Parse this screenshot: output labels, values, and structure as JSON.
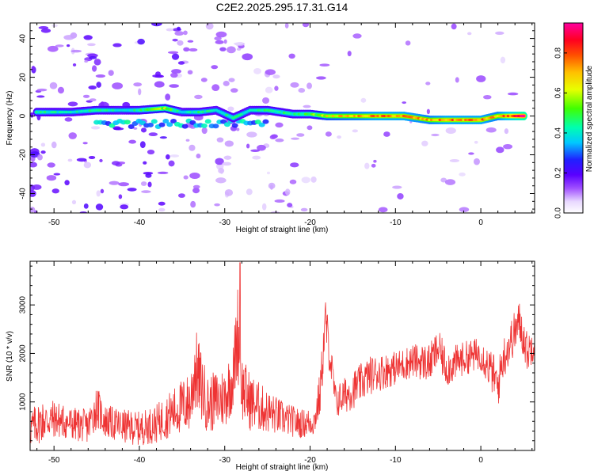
{
  "figure": {
    "title": "C2E2.2025.295.17.31.G14"
  },
  "chart_data": [
    {
      "type": "heatmap",
      "title": "C2E2.2025.295.17.31.G14",
      "xlabel": "Height of straight line (km)",
      "ylabel": "Frequency (Hz)",
      "xlim": [
        -52.8,
        6.3
      ],
      "ylim": [
        -50,
        48
      ],
      "x_ticks": [
        -50,
        -40,
        -30,
        -20,
        -10,
        0
      ],
      "y_ticks": [
        -40,
        -20,
        0,
        20,
        40
      ],
      "colorscale": "rainbow (white-purple-blue-cyan-green-yellow-orange-red-magenta)",
      "colorbar": {
        "label": "Normalized spectral amplitude",
        "range": [
          0,
          0.95
        ],
        "ticks": [
          0.0,
          0.2,
          0.4,
          0.6,
          0.8
        ]
      },
      "ridge": {
        "description": "dominant frequency track vs height",
        "x": [
          -52,
          -48,
          -45,
          -42,
          -40,
          -37,
          -35,
          -33,
          -31,
          -29,
          -27,
          -25,
          -22,
          -20,
          -18,
          -15,
          -12,
          -9,
          -6,
          -4,
          -2,
          0,
          2,
          4,
          5
        ],
        "y": [
          2,
          2,
          3,
          3,
          3,
          4,
          2,
          2,
          3,
          -1,
          3,
          3,
          1,
          1,
          0,
          0,
          0,
          0,
          -2,
          -2,
          -2,
          -2,
          0,
          0,
          0
        ],
        "amplitude": [
          0.45,
          0.4,
          0.45,
          0.4,
          0.45,
          0.6,
          0.4,
          0.45,
          0.4,
          0.45,
          0.4,
          0.45,
          0.45,
          0.5,
          0.65,
          0.7,
          0.75,
          0.75,
          0.7,
          0.75,
          0.75,
          0.75,
          0.7,
          0.85,
          0.95
        ]
      }
    },
    {
      "type": "line",
      "title": "",
      "xlabel": "Height of straight line (km)",
      "ylabel": "SNR (10 * v/v)",
      "xlim": [
        -52.8,
        6.3
      ],
      "ylim": [
        0,
        3900
      ],
      "x_ticks": [
        -50,
        -40,
        -30,
        -20,
        -10,
        0
      ],
      "y_ticks": [
        1000,
        2000,
        3000
      ],
      "color": "#ee3333",
      "envelope": {
        "description": "approximate mean SNR trace with noise spread",
        "x": [
          -52.8,
          -51.5,
          -50,
          -48,
          -46,
          -45,
          -44,
          -42,
          -40,
          -38,
          -36,
          -34,
          -33.5,
          -32,
          -30,
          -29,
          -28.5,
          -28,
          -27,
          -25,
          -23,
          -21,
          -19.5,
          -18.8,
          -18.2,
          -17,
          -15,
          -13,
          -10,
          -8,
          -6,
          -5,
          -4,
          -2,
          0,
          1.5,
          2,
          2.5,
          3.5,
          4.5,
          5.5,
          6.3
        ],
        "mean": [
          450,
          600,
          650,
          550,
          500,
          900,
          600,
          500,
          450,
          550,
          800,
          1000,
          1700,
          950,
          1100,
          1500,
          2500,
          1300,
          1000,
          800,
          650,
          550,
          600,
          1200,
          2700,
          1000,
          1250,
          1550,
          1700,
          1850,
          1800,
          2100,
          1700,
          1900,
          2000,
          1550,
          1300,
          1850,
          2250,
          2650,
          2000,
          2300
        ],
        "spread": [
          400,
          450,
          400,
          350,
          350,
          450,
          350,
          350,
          350,
          400,
          500,
          650,
          900,
          600,
          650,
          700,
          1000,
          700,
          600,
          450,
          350,
          300,
          300,
          500,
          500,
          350,
          400,
          400,
          350,
          350,
          400,
          400,
          400,
          350,
          350,
          450,
          450,
          450,
          450,
          450,
          400,
          400
        ]
      },
      "peak": {
        "x": -28.2,
        "y": 3870
      }
    }
  ],
  "colors": {
    "snr_line": "#ee3333",
    "frame": "#000000"
  }
}
